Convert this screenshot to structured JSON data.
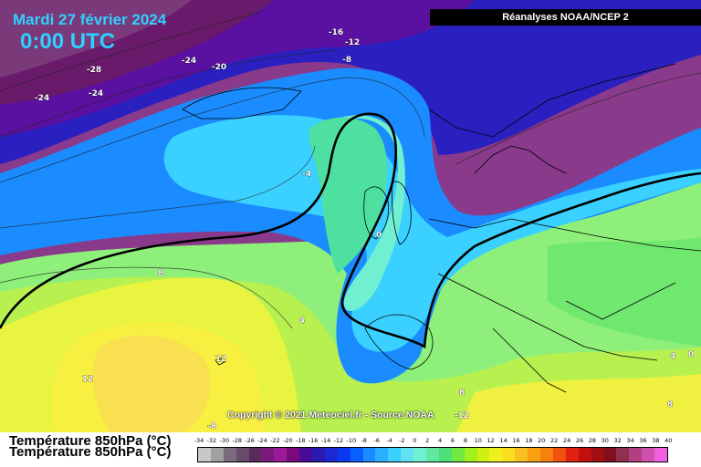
{
  "map": {
    "date": "Mardi 27 février 2024",
    "time": "0:00 UTC",
    "source": "Réanalyses NOAA/NCEP 2",
    "copyright": "Copyright © 2021 Meteociel.fr - Source NOAA",
    "variable": "Température 850hPa (°C)",
    "isotherm_labels": [
      "-16",
      "-12",
      "-8",
      "-28",
      "-24",
      "-20",
      "-24",
      "-24",
      "-4",
      "0",
      "8",
      "4",
      "12",
      "12",
      "8",
      "4",
      "0",
      "8",
      "-8",
      "-12"
    ]
  },
  "legend": {
    "title": "Température 850hPa (°C)",
    "ticks": [
      "-34",
      "-32",
      "-30",
      "-28",
      "-26",
      "-24",
      "-22",
      "-20",
      "-18",
      "-16",
      "-14",
      "-12",
      "-10",
      "-8",
      "-6",
      "-4",
      "-2",
      "0",
      "2",
      "4",
      "6",
      "8",
      "10",
      "12",
      "14",
      "16",
      "18",
      "20",
      "22",
      "24",
      "26",
      "28",
      "30",
      "32",
      "34",
      "36",
      "38",
      "40"
    ],
    "colors": [
      "#c8c8c8",
      "#a0a0a0",
      "#7a6a7a",
      "#6a4a6a",
      "#5a2a5a",
      "#7a1a7a",
      "#9a1a9a",
      "#7a0a7a",
      "#4a0a9a",
      "#2a1ab0",
      "#1a2ad0",
      "#0a3af0",
      "#0a60ff",
      "#1a8cff",
      "#2ab0ff",
      "#3ad0ff",
      "#60e0f0",
      "#70f0d0",
      "#60e8a0",
      "#4ee07a",
      "#70e840",
      "#a0f020",
      "#d0f010",
      "#f0f020",
      "#f8e020",
      "#f8c020",
      "#f8a010",
      "#f88010",
      "#f05010",
      "#e02010",
      "#c01010",
      "#a01010",
      "#801020",
      "#903050",
      "#b04080",
      "#d050b0",
      "#f060e0"
    ]
  }
}
